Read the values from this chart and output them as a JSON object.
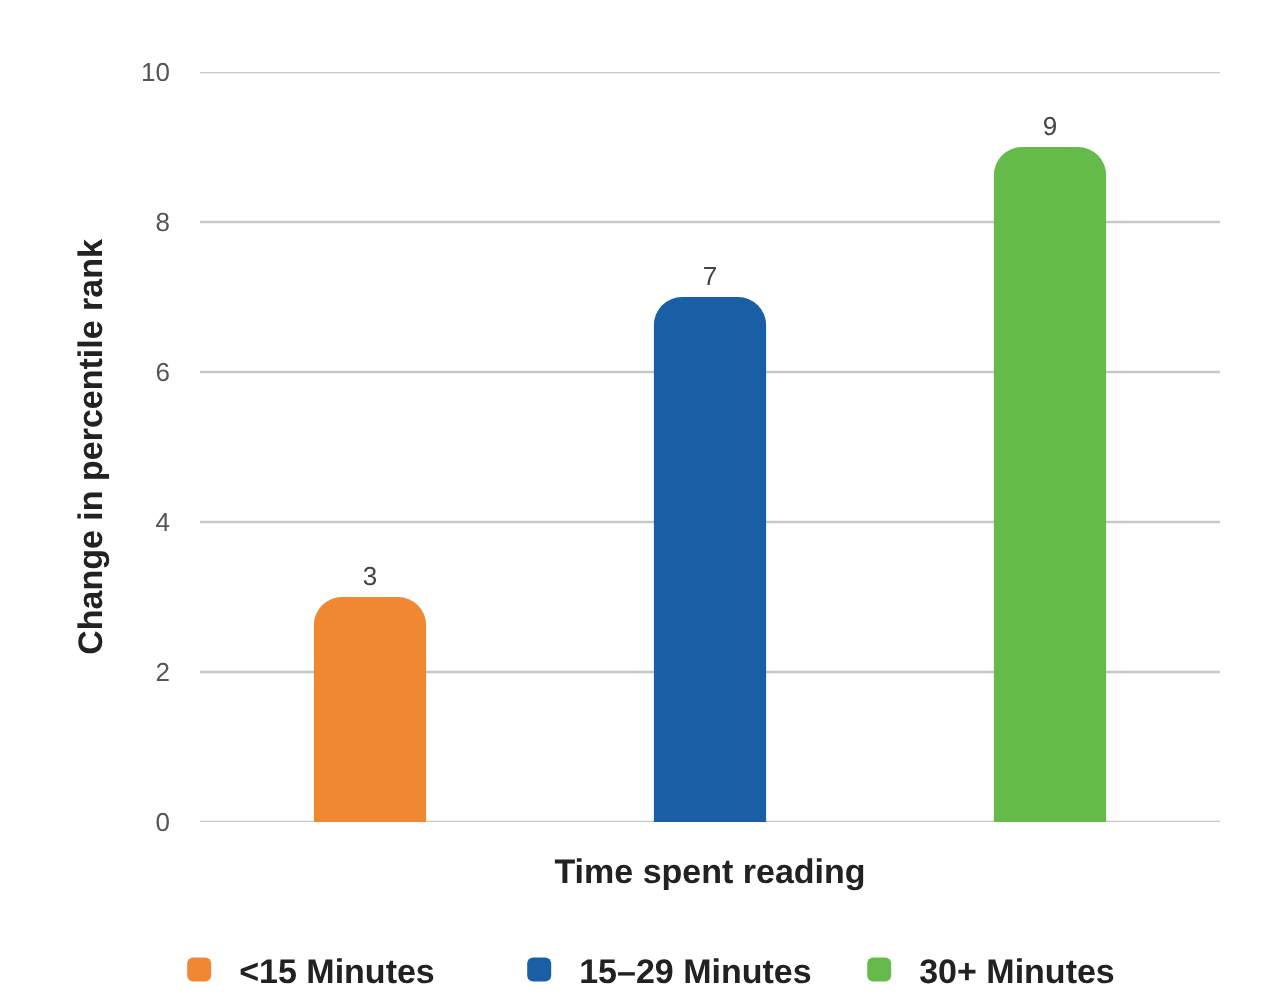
{
  "chart_data": {
    "type": "bar",
    "xlabel": "Time spent reading",
    "ylabel": "Change in percentile rank",
    "categories": [
      null
    ],
    "series": [
      {
        "name": "<15 Minutes",
        "color": "#ef8733",
        "values": [
          3
        ]
      },
      {
        "name": "15–29 Minutes",
        "color": "#1a5fa6",
        "values": [
          7
        ]
      },
      {
        "name": "30+ Minutes",
        "color": "#65bb4a",
        "values": [
          9
        ]
      }
    ],
    "ylim": [
      0,
      10
    ],
    "yticks": [
      0,
      2,
      4,
      6,
      8,
      10
    ],
    "grid": "y",
    "legend": "bottom",
    "data_labels": true,
    "tick_labels": "y"
  }
}
